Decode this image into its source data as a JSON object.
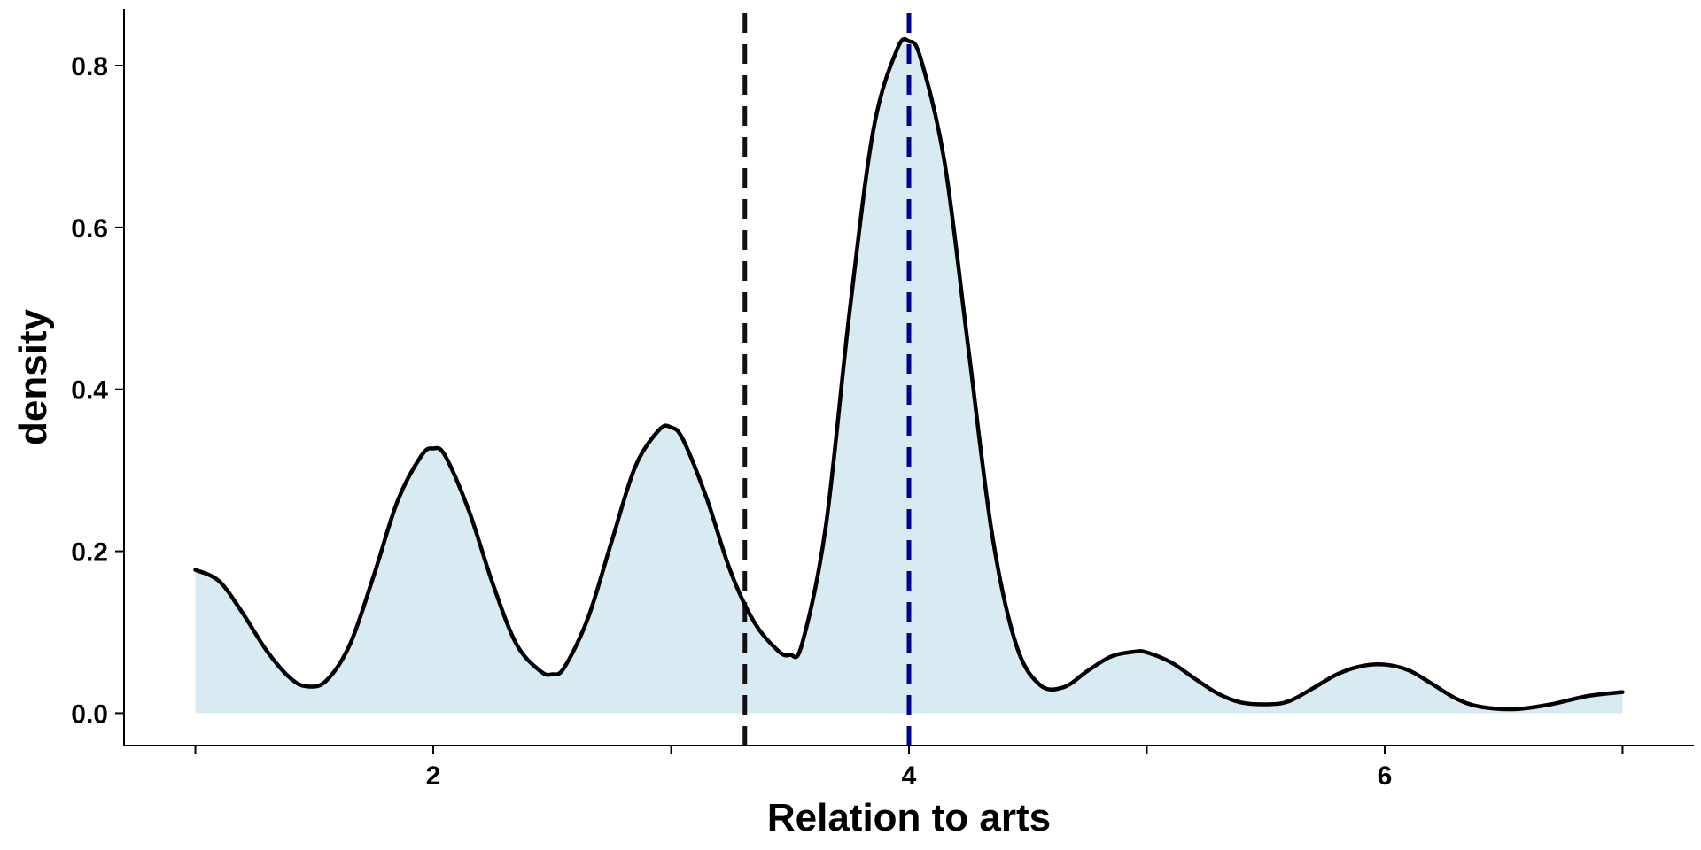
{
  "chart_data": {
    "type": "area",
    "title": "",
    "xlabel": "Relation to arts",
    "ylabel": "density",
    "xlim": [
      0.7,
      7.3
    ],
    "ylim": [
      -0.04,
      0.87
    ],
    "x_ticks": [
      1,
      2,
      3,
      4,
      5,
      6,
      7
    ],
    "x_tick_labels": [
      "",
      "2",
      "",
      "4",
      "",
      "6",
      ""
    ],
    "y_ticks": [
      0.0,
      0.2,
      0.4,
      0.6,
      0.8
    ],
    "y_tick_labels": [
      "0.0",
      "0.2",
      "0.4",
      "0.6",
      "0.8"
    ],
    "grid": false,
    "fill_color": "#d8eaf2",
    "line_color": "#000000",
    "series": [
      {
        "x": [
          1.0,
          1.1,
          1.2,
          1.3,
          1.4,
          1.47,
          1.55,
          1.65,
          1.75,
          1.85,
          1.95,
          2.0,
          2.05,
          2.15,
          2.25,
          2.35,
          2.45,
          2.5,
          2.55,
          2.65,
          2.75,
          2.85,
          2.95,
          3.0,
          3.05,
          3.15,
          3.25,
          3.35,
          3.45,
          3.5,
          3.55,
          3.65,
          3.75,
          3.85,
          3.95,
          4.0,
          4.05,
          4.15,
          4.25,
          4.35,
          4.45,
          4.55,
          4.65,
          4.75,
          4.85,
          4.95,
          5.0,
          5.1,
          5.2,
          5.3,
          5.4,
          5.52,
          5.6,
          5.7,
          5.8,
          5.9,
          6.0,
          6.1,
          6.2,
          6.3,
          6.4,
          6.55,
          6.7,
          6.85,
          7.0
        ],
        "y": [
          0.177,
          0.163,
          0.123,
          0.077,
          0.043,
          0.033,
          0.04,
          0.085,
          0.17,
          0.262,
          0.318,
          0.327,
          0.318,
          0.25,
          0.16,
          0.085,
          0.052,
          0.048,
          0.056,
          0.117,
          0.212,
          0.305,
          0.35,
          0.353,
          0.338,
          0.265,
          0.175,
          0.112,
          0.077,
          0.072,
          0.085,
          0.23,
          0.495,
          0.72,
          0.82,
          0.83,
          0.808,
          0.68,
          0.45,
          0.22,
          0.085,
          0.035,
          0.032,
          0.052,
          0.07,
          0.076,
          0.075,
          0.063,
          0.043,
          0.024,
          0.013,
          0.011,
          0.015,
          0.031,
          0.048,
          0.058,
          0.06,
          0.053,
          0.036,
          0.018,
          0.008,
          0.005,
          0.011,
          0.021,
          0.026
        ]
      }
    ],
    "vlines": [
      {
        "x": 3.31,
        "color": "#111111"
      },
      {
        "x": 4.0,
        "color": "#00008b"
      }
    ]
  }
}
